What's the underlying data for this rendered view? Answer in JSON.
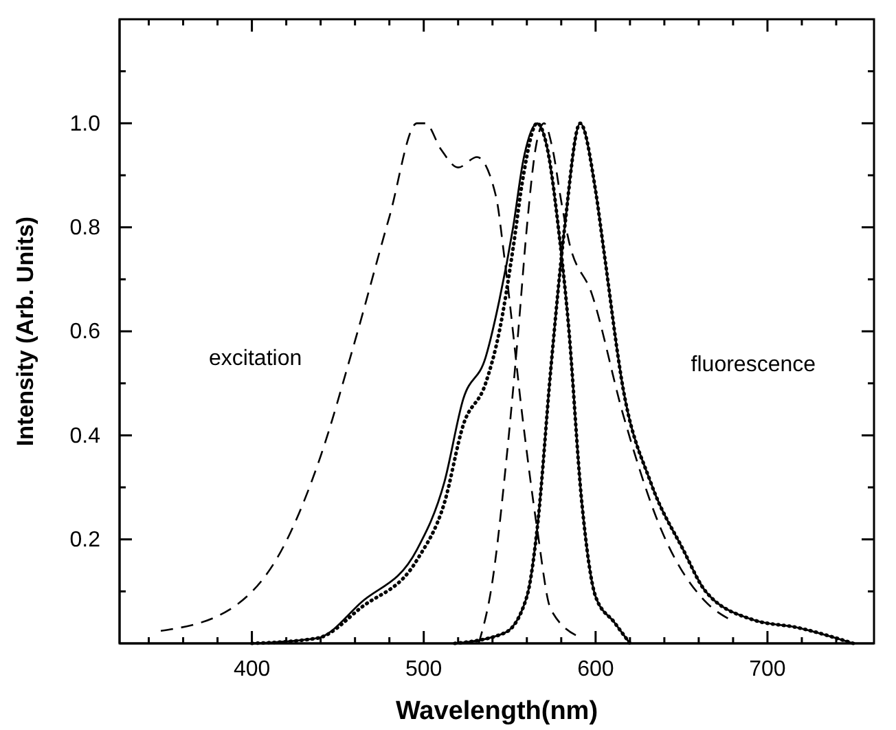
{
  "chart_data": {
    "type": "line",
    "xlabel": "Wavelength(nm)",
    "ylabel": "Intensity (Arb. Units)",
    "xlim": [
      323,
      762
    ],
    "ylim": [
      0,
      1.2
    ],
    "xticks": [
      {
        "value": 340,
        "label": null
      },
      {
        "value": 360,
        "label": null
      },
      {
        "value": 380,
        "label": null
      },
      400,
      {
        "value": 420,
        "label": null
      },
      {
        "value": 440,
        "label": null
      },
      {
        "value": 460,
        "label": null
      },
      {
        "value": 480,
        "label": null
      },
      500,
      {
        "value": 520,
        "label": null
      },
      {
        "value": 540,
        "label": null
      },
      {
        "value": 560,
        "label": null
      },
      {
        "value": 580,
        "label": null
      },
      600,
      {
        "value": 620,
        "label": null
      },
      {
        "value": 640,
        "label": null
      },
      {
        "value": 660,
        "label": null
      },
      {
        "value": 680,
        "label": null
      },
      700,
      {
        "value": 720,
        "label": null
      },
      {
        "value": 740,
        "label": null
      }
    ],
    "yticks": [
      {
        "value": 0.1,
        "label": null
      },
      0.2,
      {
        "value": 0.3,
        "label": null
      },
      0.4,
      {
        "value": 0.5,
        "label": null
      },
      0.6,
      {
        "value": 0.7,
        "label": null
      },
      0.8,
      {
        "value": 0.9,
        "label": null
      },
      {
        "value": 1,
        "label": "1.0"
      },
      {
        "value": 1.1,
        "label": null
      }
    ],
    "grid": false,
    "marker": "none",
    "annotations": [
      "excitation",
      "fluorescence"
    ],
    "series": [
      {
        "color": "#000000",
        "line_style": "dashed",
        "x": [
          347,
          387,
          419,
          440,
          459,
          480,
          496,
          501,
          510,
          520,
          531,
          542,
          547,
          558,
          566,
          574,
          592
        ],
        "values": [
          0.024,
          0.065,
          0.19,
          0.36,
          0.57,
          0.82,
          1.0,
          1.0,
          0.95,
          0.915,
          0.935,
          0.86,
          0.74,
          0.42,
          0.22,
          0.065,
          0.01
        ]
      },
      {
        "color": "#000000",
        "line_style": "dashed",
        "x": [
          532,
          540,
          548,
          555,
          560,
          565,
          570,
          575,
          580,
          584,
          598,
          616,
          638,
          664,
          678
        ],
        "values": [
          0,
          0.12,
          0.35,
          0.6,
          0.8,
          0.95,
          1.0,
          0.95,
          0.85,
          0.78,
          0.67,
          0.44,
          0.22,
          0.08,
          0.046
        ]
      },
      {
        "color": "#000000",
        "line_style": "solid",
        "x": [
          400,
          438,
          464,
          496,
          512,
          523,
          536,
          544,
          552,
          558,
          566,
          572,
          579,
          584,
          592,
          600,
          611,
          620
        ],
        "values": [
          0,
          0.01,
          0.08,
          0.18,
          0.31,
          0.47,
          0.55,
          0.66,
          0.8,
          0.93,
          1.0,
          0.95,
          0.78,
          0.62,
          0.27,
          0.09,
          0.04,
          0
        ]
      },
      {
        "color": "#000000",
        "line_style": "dotted",
        "x": [
          400,
          438,
          464,
          496,
          512,
          523,
          536,
          544,
          552,
          558,
          566,
          572,
          579,
          584,
          592,
          600,
          611,
          620
        ],
        "values": [
          0,
          0.01,
          0.07,
          0.16,
          0.27,
          0.42,
          0.5,
          0.6,
          0.76,
          0.9,
          1.0,
          0.95,
          0.78,
          0.62,
          0.27,
          0.09,
          0.04,
          0
        ]
      },
      {
        "color": "#000000",
        "line_style": "solid",
        "x": [
          518,
          547,
          560,
          566,
          574,
          582,
          591,
          600,
          605,
          616,
          632,
          651,
          664,
          691,
          718,
          750
        ],
        "values": [
          0,
          0.02,
          0.09,
          0.22,
          0.53,
          0.8,
          1.0,
          0.87,
          0.75,
          0.49,
          0.31,
          0.18,
          0.1,
          0.046,
          0.03,
          0
        ]
      },
      {
        "color": "#000000",
        "line_style": "dotted",
        "x": [
          518,
          547,
          560,
          566,
          574,
          582,
          591,
          600,
          605,
          616,
          632,
          651,
          664,
          691,
          718,
          750
        ],
        "values": [
          0,
          0.02,
          0.09,
          0.22,
          0.53,
          0.8,
          1.0,
          0.87,
          0.75,
          0.49,
          0.31,
          0.18,
          0.1,
          0.046,
          0.03,
          0
        ]
      }
    ]
  }
}
